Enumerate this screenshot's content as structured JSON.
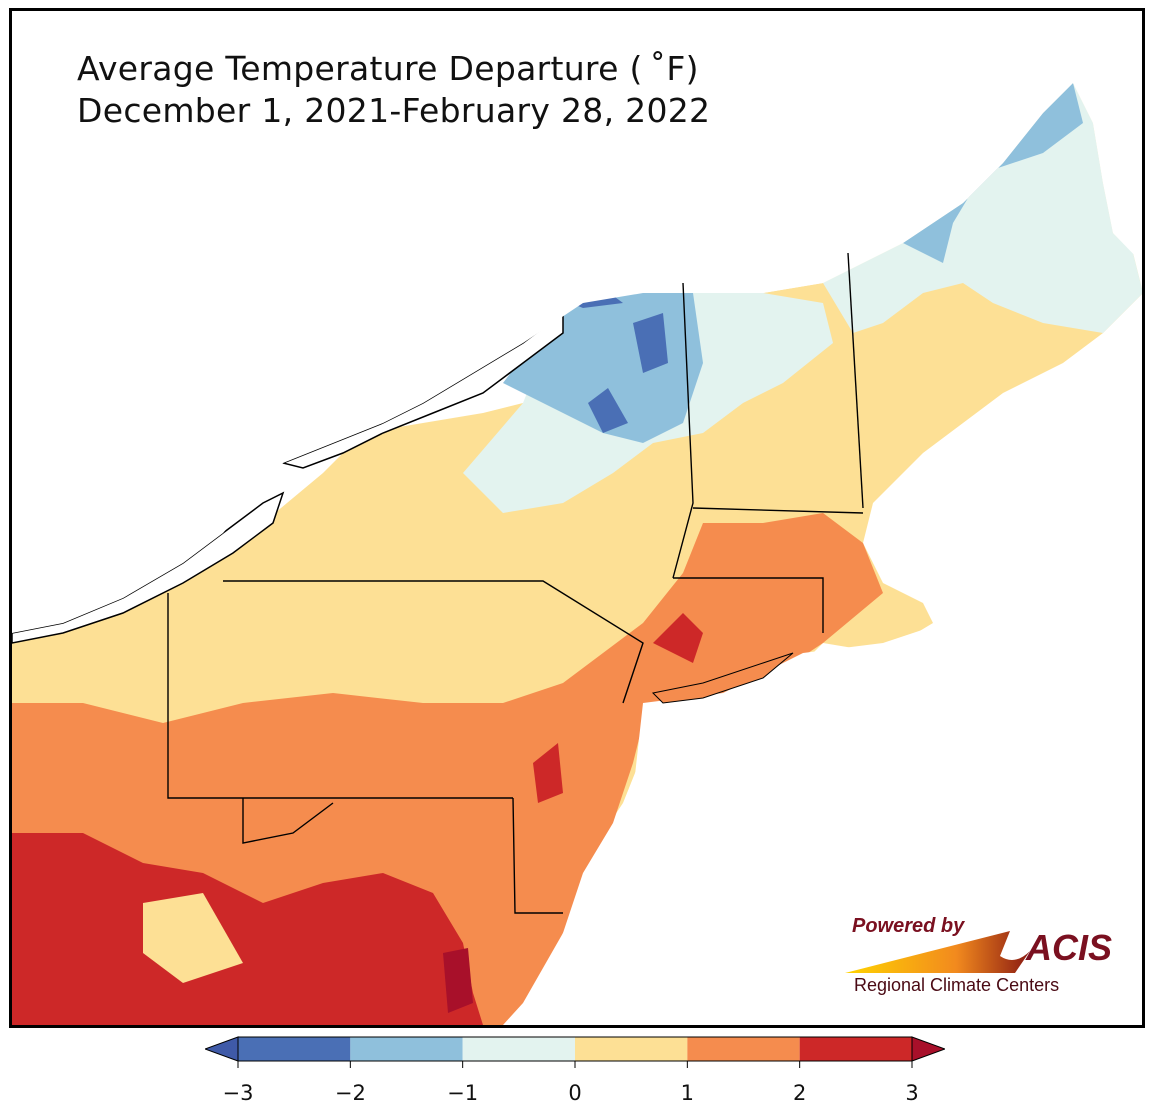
{
  "title": {
    "line1": "Average Temperature Departure ( ˚F)",
    "line2": "December 1, 2021-February 28, 2022"
  },
  "logo": {
    "powered_by": "Powered by",
    "acis": "ACIS",
    "regional": "Regional Climate Centers"
  },
  "colorbar": {
    "min": -3,
    "max": 3,
    "extend": "both",
    "ticks": [
      "−3",
      "−2",
      "−1",
      "0",
      "1",
      "2",
      "3"
    ],
    "bins": [
      {
        "range": [
          -3,
          -2
        ],
        "color": "#4a6fb5"
      },
      {
        "range": [
          -2,
          -1
        ],
        "color": "#8fc0dc"
      },
      {
        "range": [
          -1,
          0
        ],
        "color": "#e3f3ef"
      },
      {
        "range": [
          0,
          1
        ],
        "color": "#fde095"
      },
      {
        "range": [
          1,
          2
        ],
        "color": "#f58c4e"
      },
      {
        "range": [
          2,
          3
        ],
        "color": "#cd2828"
      }
    ],
    "under_color": "#3f5aa8",
    "over_color": "#a8102a"
  },
  "colors": {
    "lake": "#ffffff",
    "border": "#000000",
    "county": "#9a9a9a"
  }
}
